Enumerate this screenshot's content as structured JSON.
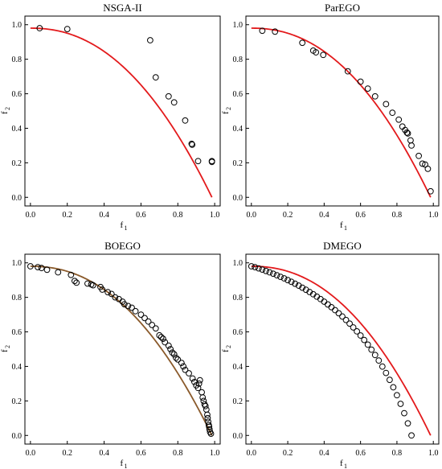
{
  "chart_data": [
    {
      "type": "scatter",
      "title": "NSGA-II",
      "xlabel_main": "f",
      "xlabel_sub": "1",
      "ylabel_main": "f",
      "ylabel_sub": "2",
      "xlim": [
        -0.03,
        1.03
      ],
      "ylim": [
        -0.05,
        1.05
      ],
      "xticks": [
        "0.0",
        "0.2",
        "0.4",
        "0.6",
        "0.8",
        "1.0"
      ],
      "yticks": [
        "0.0",
        "0.2",
        "0.4",
        "0.6",
        "0.8",
        "1.0"
      ],
      "xtick_values": [
        0.0,
        0.2,
        0.4,
        0.6,
        0.8,
        1.0
      ],
      "ytick_values": [
        0.0,
        0.2,
        0.4,
        0.6,
        0.8,
        1.0
      ],
      "front_color": "#e31a1c",
      "marker_color": "#000000",
      "points": [
        [
          0.05,
          0.98
        ],
        [
          0.2,
          0.975
        ],
        [
          0.65,
          0.91
        ],
        [
          0.68,
          0.695
        ],
        [
          0.75,
          0.585
        ],
        [
          0.78,
          0.55
        ],
        [
          0.84,
          0.445
        ],
        [
          0.875,
          0.31
        ],
        [
          0.878,
          0.305
        ],
        [
          0.91,
          0.21
        ],
        [
          0.985,
          0.21
        ],
        [
          0.985,
          0.205
        ]
      ]
    },
    {
      "type": "scatter",
      "title": "ParEGO",
      "xlabel_main": "f",
      "xlabel_sub": "1",
      "ylabel_main": "f",
      "ylabel_sub": "2",
      "xlim": [
        -0.03,
        1.03
      ],
      "ylim": [
        -0.05,
        1.05
      ],
      "xticks": [
        "0.0",
        "0.2",
        "0.4",
        "0.6",
        "0.8",
        "1.0"
      ],
      "yticks": [
        "0.0",
        "0.2",
        "0.4",
        "0.6",
        "0.8",
        "1.0"
      ],
      "xtick_values": [
        0.0,
        0.2,
        0.4,
        0.6,
        0.8,
        1.0
      ],
      "ytick_values": [
        0.0,
        0.2,
        0.4,
        0.6,
        0.8,
        1.0
      ],
      "front_color": "#e31a1c",
      "marker_color": "#000000",
      "points": [
        [
          0.06,
          0.965
        ],
        [
          0.13,
          0.96
        ],
        [
          0.28,
          0.895
        ],
        [
          0.34,
          0.85
        ],
        [
          0.355,
          0.84
        ],
        [
          0.395,
          0.825
        ],
        [
          0.53,
          0.73
        ],
        [
          0.6,
          0.67
        ],
        [
          0.64,
          0.63
        ],
        [
          0.68,
          0.585
        ],
        [
          0.74,
          0.54
        ],
        [
          0.775,
          0.49
        ],
        [
          0.81,
          0.45
        ],
        [
          0.83,
          0.41
        ],
        [
          0.845,
          0.39
        ],
        [
          0.855,
          0.375
        ],
        [
          0.86,
          0.37
        ],
        [
          0.875,
          0.33
        ],
        [
          0.88,
          0.3
        ],
        [
          0.92,
          0.24
        ],
        [
          0.94,
          0.195
        ],
        [
          0.955,
          0.19
        ],
        [
          0.97,
          0.165
        ],
        [
          0.985,
          0.035
        ]
      ]
    },
    {
      "type": "scatter",
      "title": "BOEGO",
      "xlabel_main": "f",
      "xlabel_sub": "1",
      "ylabel_main": "f",
      "ylabel_sub": "2",
      "xlim": [
        -0.03,
        1.03
      ],
      "ylim": [
        -0.05,
        1.05
      ],
      "xticks": [
        "0.0",
        "0.2",
        "0.4",
        "0.6",
        "0.8",
        "1.0"
      ],
      "yticks": [
        "0.0",
        "0.2",
        "0.4",
        "0.6",
        "0.8",
        "1.0"
      ],
      "xtick_values": [
        0.0,
        0.2,
        0.4,
        0.6,
        0.8,
        1.0
      ],
      "ytick_values": [
        0.0,
        0.2,
        0.4,
        0.6,
        0.8,
        1.0
      ],
      "front_color": "#8a5a2b",
      "marker_color": "#000000",
      "points": [
        [
          0.0,
          0.98
        ],
        [
          0.04,
          0.975
        ],
        [
          0.06,
          0.97
        ],
        [
          0.09,
          0.96
        ],
        [
          0.15,
          0.945
        ],
        [
          0.22,
          0.93
        ],
        [
          0.24,
          0.895
        ],
        [
          0.25,
          0.885
        ],
        [
          0.31,
          0.88
        ],
        [
          0.33,
          0.875
        ],
        [
          0.34,
          0.87
        ],
        [
          0.38,
          0.86
        ],
        [
          0.39,
          0.845
        ],
        [
          0.42,
          0.83
        ],
        [
          0.44,
          0.82
        ],
        [
          0.46,
          0.8
        ],
        [
          0.48,
          0.79
        ],
        [
          0.5,
          0.775
        ],
        [
          0.51,
          0.76
        ],
        [
          0.53,
          0.75
        ],
        [
          0.55,
          0.74
        ],
        [
          0.57,
          0.72
        ],
        [
          0.6,
          0.7
        ],
        [
          0.62,
          0.68
        ],
        [
          0.64,
          0.66
        ],
        [
          0.66,
          0.64
        ],
        [
          0.68,
          0.62
        ],
        [
          0.7,
          0.58
        ],
        [
          0.71,
          0.57
        ],
        [
          0.72,
          0.56
        ],
        [
          0.73,
          0.54
        ],
        [
          0.75,
          0.52
        ],
        [
          0.76,
          0.5
        ],
        [
          0.77,
          0.48
        ],
        [
          0.78,
          0.47
        ],
        [
          0.79,
          0.45
        ],
        [
          0.8,
          0.44
        ],
        [
          0.82,
          0.42
        ],
        [
          0.83,
          0.4
        ],
        [
          0.84,
          0.38
        ],
        [
          0.86,
          0.36
        ],
        [
          0.88,
          0.33
        ],
        [
          0.89,
          0.31
        ],
        [
          0.9,
          0.29
        ],
        [
          0.91,
          0.275
        ],
        [
          0.915,
          0.3
        ],
        [
          0.92,
          0.32
        ],
        [
          0.93,
          0.25
        ],
        [
          0.935,
          0.22
        ],
        [
          0.94,
          0.2
        ],
        [
          0.945,
          0.18
        ],
        [
          0.95,
          0.17
        ],
        [
          0.955,
          0.15
        ],
        [
          0.96,
          0.12
        ],
        [
          0.962,
          0.1
        ],
        [
          0.965,
          0.08
        ],
        [
          0.968,
          0.06
        ],
        [
          0.97,
          0.05
        ],
        [
          0.972,
          0.035
        ],
        [
          0.975,
          0.02
        ],
        [
          0.98,
          0.01
        ]
      ]
    },
    {
      "type": "scatter",
      "title": "DMEGO",
      "xlabel_main": "f",
      "xlabel_sub": "1",
      "ylabel_main": "f",
      "ylabel_sub": "2",
      "xlim": [
        -0.03,
        1.03
      ],
      "ylim": [
        -0.05,
        1.05
      ],
      "xticks": [
        "0.0",
        "0.2",
        "0.4",
        "0.6",
        "0.8",
        "1.0"
      ],
      "yticks": [
        "0.0",
        "0.2",
        "0.4",
        "0.6",
        "0.8",
        "1.0"
      ],
      "xtick_values": [
        0.0,
        0.2,
        0.4,
        0.6,
        0.8,
        1.0
      ],
      "ytick_values": [
        0.0,
        0.2,
        0.4,
        0.6,
        0.8,
        1.0
      ],
      "front_color": "#e31a1c",
      "marker_color": "#000000",
      "points": [
        [
          0.0,
          0.98
        ],
        [
          0.02,
          0.975
        ],
        [
          0.04,
          0.968
        ],
        [
          0.06,
          0.961
        ],
        [
          0.08,
          0.953
        ],
        [
          0.1,
          0.945
        ],
        [
          0.12,
          0.937
        ],
        [
          0.14,
          0.928
        ],
        [
          0.16,
          0.919
        ],
        [
          0.18,
          0.91
        ],
        [
          0.2,
          0.9
        ],
        [
          0.22,
          0.89
        ],
        [
          0.24,
          0.879
        ],
        [
          0.26,
          0.868
        ],
        [
          0.28,
          0.856
        ],
        [
          0.3,
          0.844
        ],
        [
          0.32,
          0.831
        ],
        [
          0.34,
          0.818
        ],
        [
          0.36,
          0.804
        ],
        [
          0.38,
          0.79
        ],
        [
          0.4,
          0.775
        ],
        [
          0.42,
          0.759
        ],
        [
          0.44,
          0.743
        ],
        [
          0.46,
          0.726
        ],
        [
          0.48,
          0.708
        ],
        [
          0.5,
          0.689
        ],
        [
          0.52,
          0.669
        ],
        [
          0.54,
          0.648
        ],
        [
          0.56,
          0.626
        ],
        [
          0.58,
          0.603
        ],
        [
          0.6,
          0.579
        ],
        [
          0.62,
          0.553
        ],
        [
          0.64,
          0.526
        ],
        [
          0.66,
          0.497
        ],
        [
          0.68,
          0.466
        ],
        [
          0.7,
          0.434
        ],
        [
          0.72,
          0.399
        ],
        [
          0.74,
          0.362
        ],
        [
          0.76,
          0.322
        ],
        [
          0.78,
          0.279
        ],
        [
          0.8,
          0.233
        ],
        [
          0.82,
          0.183
        ],
        [
          0.84,
          0.129
        ],
        [
          0.86,
          0.07
        ],
        [
          0.88,
          0.0
        ]
      ]
    }
  ]
}
